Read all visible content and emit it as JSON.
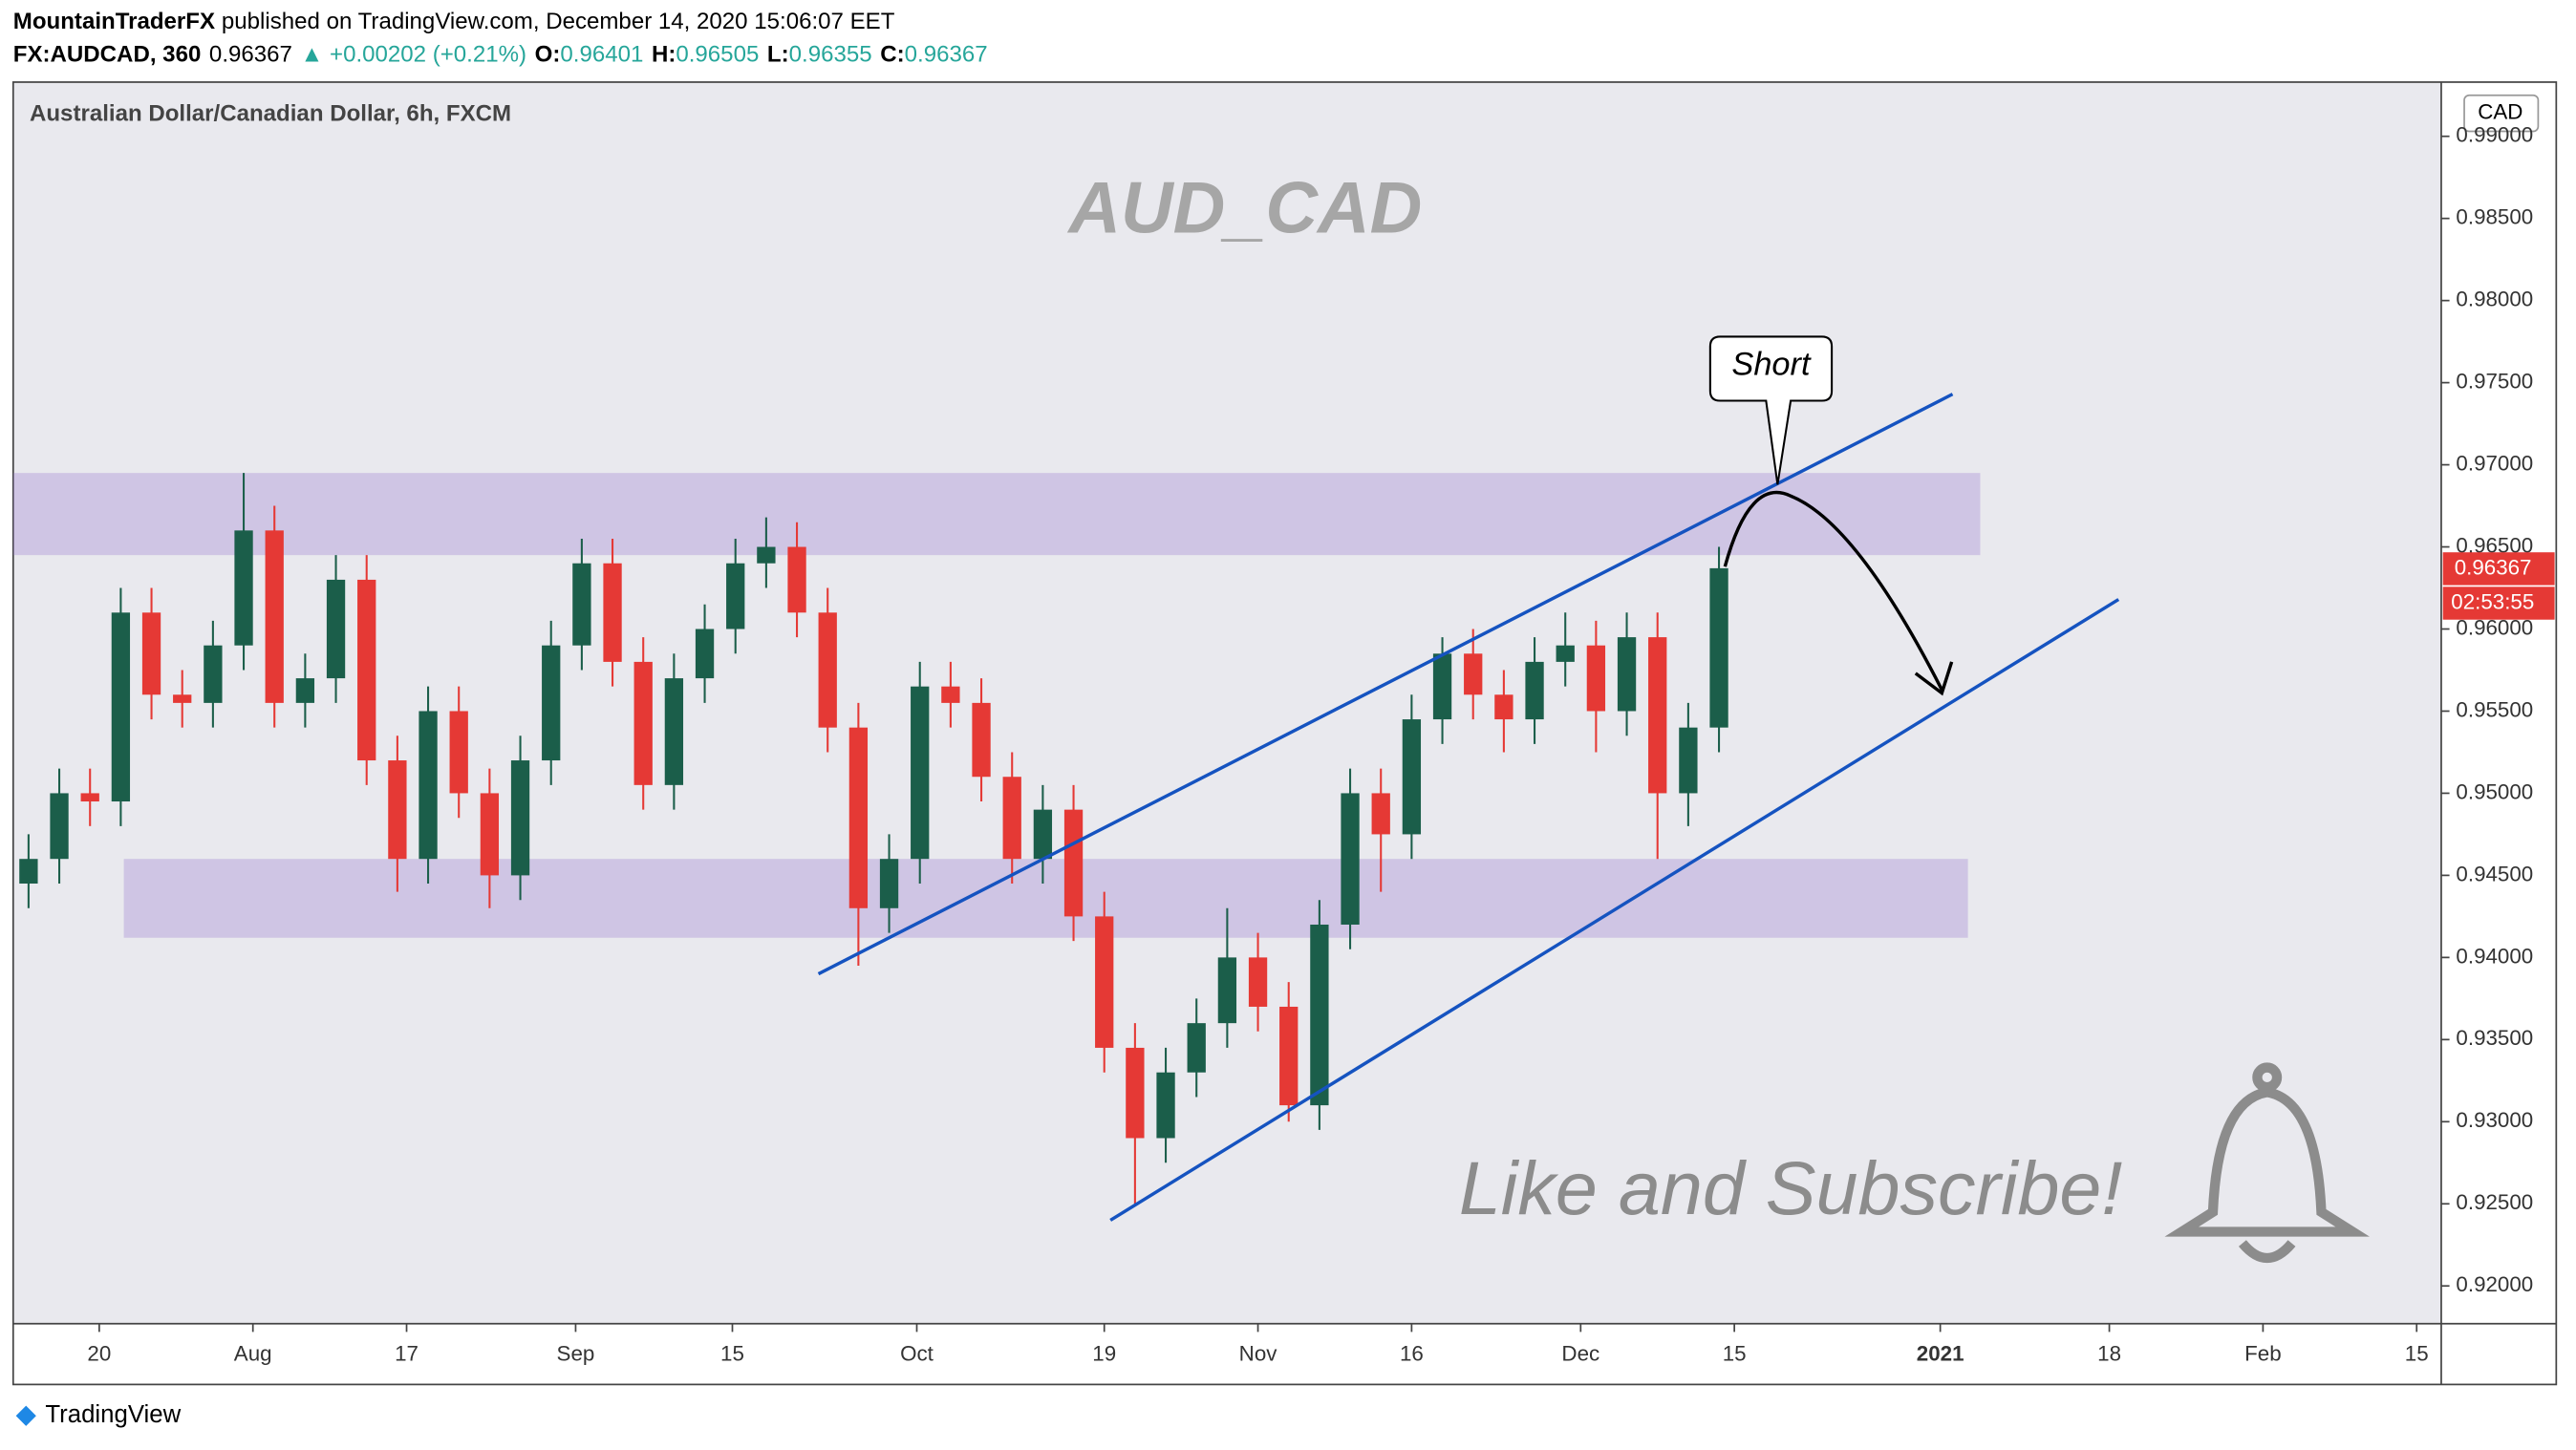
{
  "header": {
    "author": "MountainTraderFX",
    "published": "published on TradingView.com, December 14, 2020 15:06:07 EET",
    "symbol": "FX:AUDCAD, 360",
    "price": 0.96367,
    "change": "▲ +0.00202 (+0.21%)",
    "ohlc": [
      {
        "label": "O:",
        "value": 0.96401
      },
      {
        "label": "H:",
        "value": 0.96505
      },
      {
        "label": "L:",
        "value": 0.96355
      },
      {
        "label": "C:",
        "value": 0.96367
      }
    ]
  },
  "chart_data": {
    "type": "candlestick",
    "title": "Australian Dollar/Canadian Dollar, 6h, FXCM",
    "watermark": "AUD_CAD",
    "currency": "CAD",
    "up_color": "#1b5e4a",
    "down_color": "#e53935",
    "open": [
      0.9445,
      0.946,
      0.95,
      0.9495,
      0.961,
      0.956,
      0.9555,
      0.959,
      0.966,
      0.9555,
      0.957,
      0.963,
      0.952,
      0.946,
      0.955,
      0.95,
      0.945,
      0.952,
      0.959,
      0.964,
      0.958,
      0.9505,
      0.957,
      0.96,
      0.964,
      0.965,
      0.961,
      0.954,
      0.943,
      0.946,
      0.9565,
      0.9555,
      0.951,
      0.946,
      0.949,
      0.9425,
      0.9345,
      0.929,
      0.933,
      0.936,
      0.94,
      0.937,
      0.931,
      0.942,
      0.95,
      0.9475,
      0.9545,
      0.9585,
      0.956,
      0.9545,
      0.958,
      0.959,
      0.955,
      0.9595,
      0.95,
      0.954
    ],
    "high": [
      0.9475,
      0.9515,
      0.9515,
      0.9625,
      0.9625,
      0.9575,
      0.9605,
      0.9695,
      0.9675,
      0.9585,
      0.9645,
      0.9645,
      0.9535,
      0.9565,
      0.9565,
      0.9515,
      0.9535,
      0.9605,
      0.9655,
      0.9655,
      0.9595,
      0.9585,
      0.9615,
      0.9655,
      0.9668,
      0.9665,
      0.9625,
      0.9555,
      0.9475,
      0.958,
      0.958,
      0.957,
      0.9525,
      0.9505,
      0.9505,
      0.944,
      0.936,
      0.9345,
      0.9375,
      0.943,
      0.9415,
      0.9385,
      0.9435,
      0.9515,
      0.9515,
      0.956,
      0.9595,
      0.96,
      0.9575,
      0.9595,
      0.961,
      0.9605,
      0.961,
      0.961,
      0.9555,
      0.965
    ],
    "low": [
      0.943,
      0.9445,
      0.948,
      0.948,
      0.9545,
      0.954,
      0.954,
      0.9575,
      0.954,
      0.954,
      0.9555,
      0.9505,
      0.944,
      0.9445,
      0.9485,
      0.943,
      0.9435,
      0.9505,
      0.9575,
      0.9565,
      0.949,
      0.949,
      0.9555,
      0.9585,
      0.9625,
      0.9595,
      0.9525,
      0.9395,
      0.9415,
      0.9445,
      0.954,
      0.9495,
      0.9445,
      0.9445,
      0.941,
      0.933,
      0.925,
      0.9275,
      0.9315,
      0.9345,
      0.9355,
      0.93,
      0.9295,
      0.9405,
      0.944,
      0.946,
      0.953,
      0.9545,
      0.9525,
      0.953,
      0.9565,
      0.9525,
      0.9535,
      0.946,
      0.948,
      0.9525
    ],
    "close": [
      0.946,
      0.95,
      0.9495,
      0.961,
      0.956,
      0.9555,
      0.959,
      0.966,
      0.9555,
      0.957,
      0.963,
      0.952,
      0.946,
      0.955,
      0.95,
      0.945,
      0.952,
      0.959,
      0.964,
      0.958,
      0.9505,
      0.957,
      0.96,
      0.964,
      0.965,
      0.961,
      0.954,
      0.943,
      0.946,
      0.9565,
      0.9555,
      0.951,
      0.946,
      0.949,
      0.9425,
      0.9345,
      0.929,
      0.933,
      0.936,
      0.94,
      0.937,
      0.931,
      0.942,
      0.95,
      0.9475,
      0.9545,
      0.9585,
      0.956,
      0.9545,
      0.958,
      0.959,
      0.955,
      0.9595,
      0.95,
      0.954,
      0.9637
    ],
    "xlim": [
      0,
      79
    ],
    "xticks": [
      {
        "value": 2.8,
        "label": "20"
      },
      {
        "value": 7.8,
        "label": "Aug"
      },
      {
        "value": 12.8,
        "label": "17"
      },
      {
        "value": 18.3,
        "label": "Sep"
      },
      {
        "value": 23.4,
        "label": "15"
      },
      {
        "value": 29.4,
        "label": "Oct"
      },
      {
        "value": 35.5,
        "label": "19"
      },
      {
        "value": 40.5,
        "label": "Nov"
      },
      {
        "value": 45.5,
        "label": "16"
      },
      {
        "value": 51,
        "label": "Dec"
      },
      {
        "value": 56,
        "label": "15"
      },
      {
        "value": 62.7,
        "label": "2021"
      },
      {
        "value": 68.2,
        "label": "18"
      },
      {
        "value": 73.2,
        "label": "Feb"
      },
      {
        "value": 78.2,
        "label": "15"
      }
    ],
    "ylim": [
      0.9177,
      0.9933
    ],
    "yticks": [
      {
        "value": 0.99,
        "label": "0.99000"
      },
      {
        "value": 0.985,
        "label": "0.98500"
      },
      {
        "value": 0.98,
        "label": "0.98000"
      },
      {
        "value": 0.975,
        "label": "0.97500"
      },
      {
        "value": 0.97,
        "label": "0.97000"
      },
      {
        "value": 0.965,
        "label": "0.96500"
      },
      {
        "value": 0.96,
        "label": "0.96000"
      },
      {
        "value": 0.955,
        "label": "0.95500"
      },
      {
        "value": 0.95,
        "label": "0.95000"
      },
      {
        "value": 0.945,
        "label": "0.94500"
      },
      {
        "value": 0.94,
        "label": "0.94000"
      },
      {
        "value": 0.935,
        "label": "0.93500"
      },
      {
        "value": 0.93,
        "label": "0.93000"
      },
      {
        "value": 0.925,
        "label": "0.92500"
      },
      {
        "value": 0.92,
        "label": "0.92000"
      }
    ],
    "last_price": {
      "value": 0.96367,
      "label": "0.96367",
      "countdown": "02:53:55"
    },
    "zones": [
      {
        "x": [
          0,
          64
        ],
        "y": [
          0.9645,
          0.9695
        ]
      },
      {
        "x": [
          3.6,
          63.6
        ],
        "y": [
          0.9412,
          0.946
        ]
      }
    ],
    "trend_lines": [
      {
        "x": [
          26.2,
          63.1
        ],
        "y": [
          0.939,
          0.9743
        ]
      },
      {
        "x": [
          35.7,
          68.5
        ],
        "y": [
          0.924,
          0.9618
        ]
      }
    ],
    "callout": "Short",
    "footer_text": "Like and Subscribe!"
  },
  "footer": {
    "brand": "TradingView"
  }
}
